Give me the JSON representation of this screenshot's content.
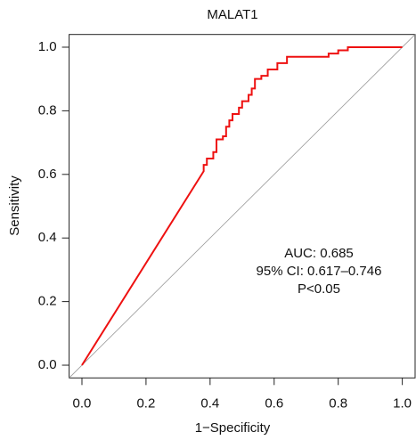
{
  "chart_data": {
    "type": "line",
    "title": "MALAT1",
    "x_label": "1−Specificity",
    "y_label": "Sensitivity",
    "x": [
      0,
      0.38,
      0.38,
      0.39,
      0.39,
      0.41,
      0.41,
      0.42,
      0.42,
      0.44,
      0.44,
      0.45,
      0.45,
      0.46,
      0.46,
      0.47,
      0.47,
      0.49,
      0.49,
      0.5,
      0.5,
      0.52,
      0.52,
      0.53,
      0.53,
      0.54,
      0.54,
      0.56,
      0.56,
      0.58,
      0.58,
      0.61,
      0.61,
      0.64,
      0.64,
      0.77,
      0.77,
      0.8,
      0.8,
      0.83,
      0.83,
      1.0
    ],
    "values": [
      0,
      0.61,
      0.63,
      0.63,
      0.65,
      0.65,
      0.67,
      0.67,
      0.71,
      0.71,
      0.72,
      0.72,
      0.75,
      0.75,
      0.77,
      0.77,
      0.79,
      0.79,
      0.81,
      0.81,
      0.83,
      0.83,
      0.85,
      0.85,
      0.87,
      0.87,
      0.9,
      0.9,
      0.91,
      0.91,
      0.93,
      0.93,
      0.95,
      0.95,
      0.97,
      0.97,
      0.98,
      0.98,
      0.99,
      0.99,
      1.0,
      1.0
    ],
    "color": "#ee1111",
    "xlim": [
      -0.04,
      1.04
    ],
    "ylim": [
      -0.04,
      1.04
    ],
    "xticks": [
      {
        "value": 0,
        "label": "0.0"
      },
      0.2,
      0.4,
      0.6,
      0.8,
      {
        "value": 1,
        "label": "1.0"
      }
    ],
    "yticks": [
      {
        "value": 0,
        "label": "0.0"
      },
      0.2,
      0.4,
      0.6,
      0.8,
      {
        "value": 1,
        "label": "1.0"
      }
    ],
    "annotations": [
      "AUC: 0.685",
      "95% CI: 0.617–0.746",
      "P<0.05"
    ]
  }
}
